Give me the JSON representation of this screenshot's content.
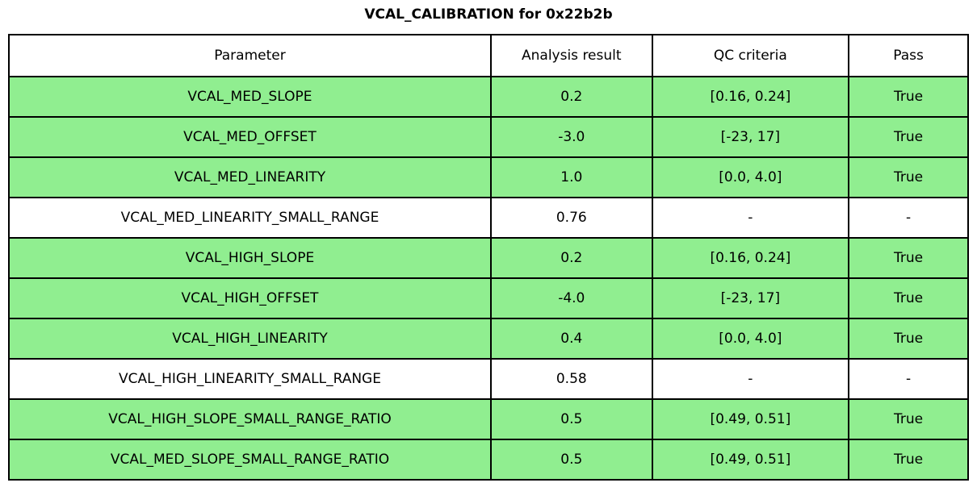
{
  "chart_data": {
    "type": "table",
    "title": "VCAL_CALIBRATION for 0x22b2b",
    "columns": [
      "Parameter",
      "Analysis result",
      "QC criteria",
      "Pass"
    ],
    "colors": {
      "pass_row": "#90ee90",
      "border": "#000000",
      "background": "#ffffff"
    },
    "rows": [
      {
        "param": "VCAL_MED_SLOPE",
        "result": "0.2",
        "criteria": "[0.16, 0.24]",
        "pass": "True",
        "state": "pass"
      },
      {
        "param": "VCAL_MED_OFFSET",
        "result": "-3.0",
        "criteria": "[-23, 17]",
        "pass": "True",
        "state": "pass"
      },
      {
        "param": "VCAL_MED_LINEARITY",
        "result": "1.0",
        "criteria": "[0.0, 4.0]",
        "pass": "True",
        "state": "pass"
      },
      {
        "param": "VCAL_MED_LINEARITY_SMALL_RANGE",
        "result": "0.76",
        "criteria": "-",
        "pass": "-",
        "state": "none"
      },
      {
        "param": "VCAL_HIGH_SLOPE",
        "result": "0.2",
        "criteria": "[0.16, 0.24]",
        "pass": "True",
        "state": "pass"
      },
      {
        "param": "VCAL_HIGH_OFFSET",
        "result": "-4.0",
        "criteria": "[-23, 17]",
        "pass": "True",
        "state": "pass"
      },
      {
        "param": "VCAL_HIGH_LINEARITY",
        "result": "0.4",
        "criteria": "[0.0, 4.0]",
        "pass": "True",
        "state": "pass"
      },
      {
        "param": "VCAL_HIGH_LINEARITY_SMALL_RANGE",
        "result": "0.58",
        "criteria": "-",
        "pass": "-",
        "state": "none"
      },
      {
        "param": "VCAL_HIGH_SLOPE_SMALL_RANGE_RATIO",
        "result": "0.5",
        "criteria": "[0.49, 0.51]",
        "pass": "True",
        "state": "pass"
      },
      {
        "param": "VCAL_MED_SLOPE_SMALL_RANGE_RATIO",
        "result": "0.5",
        "criteria": "[0.49, 0.51]",
        "pass": "True",
        "state": "pass"
      }
    ]
  }
}
